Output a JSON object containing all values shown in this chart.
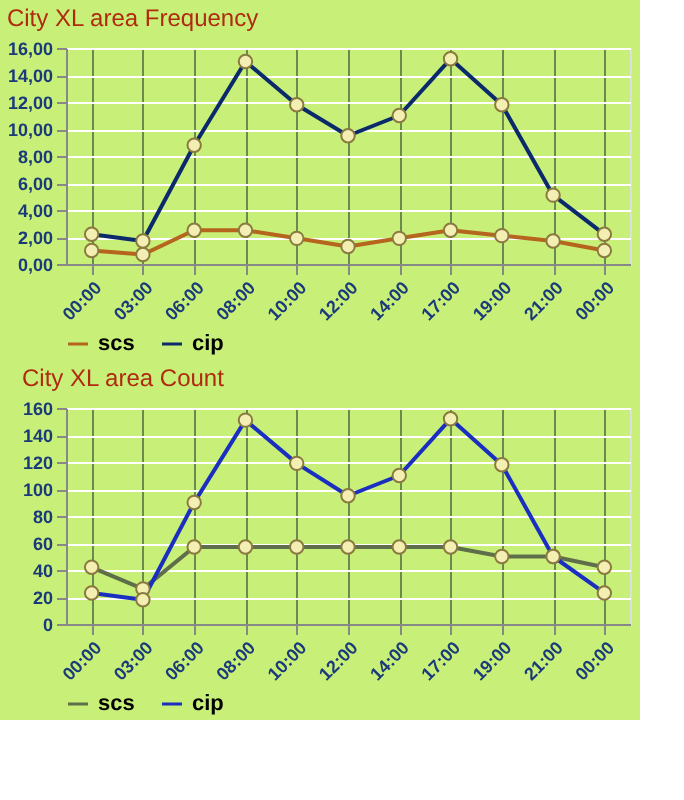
{
  "chart_data": [
    {
      "type": "line",
      "title": "City XL area Frequency",
      "categories": [
        "00:00",
        "03:00",
        "06:00",
        "08:00",
        "10:00",
        "12:00",
        "14:00",
        "17:00",
        "19:00",
        "21:00",
        "00:00"
      ],
      "series": [
        {
          "name": "scs",
          "color": "#b5651d",
          "values": [
            1.0,
            0.7,
            2.5,
            2.5,
            1.9,
            1.3,
            1.9,
            2.5,
            2.1,
            1.7,
            1.0
          ]
        },
        {
          "name": "cip",
          "color": "#0b2a6b",
          "values": [
            2.2,
            1.7,
            8.8,
            15.0,
            11.8,
            9.5,
            11.0,
            15.2,
            11.8,
            5.1,
            2.2
          ]
        }
      ],
      "ylim": [
        0,
        16
      ],
      "yticks": [
        {
          "value": 0,
          "label": "0,00"
        },
        {
          "value": 2,
          "label": "2,00"
        },
        {
          "value": 4,
          "label": "4,00"
        },
        {
          "value": 6,
          "label": "6,00"
        },
        {
          "value": 8,
          "label": "8,00"
        },
        {
          "value": 10,
          "label": "10,00"
        },
        {
          "value": 12,
          "label": "12,00"
        },
        {
          "value": 14,
          "label": "14,00"
        },
        {
          "value": 16,
          "label": "16,00"
        }
      ],
      "grid": true,
      "legend": "bottom",
      "marker": "circle",
      "line_style": "solid"
    },
    {
      "type": "line",
      "title": "City XL area Count",
      "categories": [
        "00:00",
        "03:00",
        "06:00",
        "08:00",
        "10:00",
        "12:00",
        "14:00",
        "17:00",
        "19:00",
        "21:00",
        "00:00"
      ],
      "series": [
        {
          "name": "scs",
          "color": "#5f6e4a",
          "values": [
            42,
            26,
            57,
            57,
            57,
            57,
            57,
            57,
            50,
            50,
            42
          ]
        },
        {
          "name": "cip",
          "color": "#1a2fc0",
          "values": [
            23,
            18,
            90,
            151,
            119,
            95,
            110,
            152,
            118,
            50,
            23
          ]
        }
      ],
      "ylim": [
        0,
        160
      ],
      "yticks": [
        0,
        20,
        40,
        60,
        80,
        100,
        120,
        140,
        160
      ],
      "grid": true,
      "legend": "bottom",
      "marker": "circle",
      "line_style": "solid"
    }
  ]
}
